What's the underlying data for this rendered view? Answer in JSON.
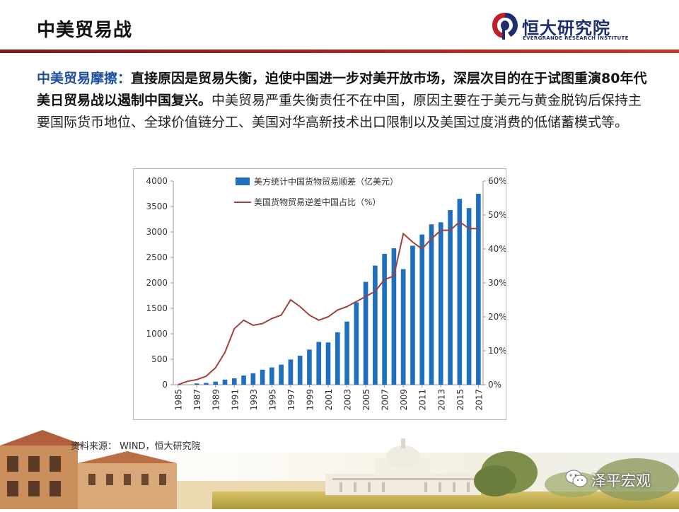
{
  "header": {
    "title": "中美贸易战",
    "logo_name": "恒大研究院",
    "logo_subtitle": "EVERGRANDE RESEARCH INSTITUTE"
  },
  "intro": {
    "keyword": "中美贸易摩擦：",
    "bold": "直接原因是贸易失衡，迫使中国进一步对美开放市场，深层次目的在于试图重演80年代美日贸易战以遏制中国复兴。",
    "normal": "中美贸易严重失衡责任不在中国，原因主要在于美元与黄金脱钩后保持主要国际货币地位、全球价值链分工、美国对华高新技术出口限制以及美国过度消费的低储蓄模式等。"
  },
  "source": "资料来源： WIND，恒大研究院",
  "watermark": "泽平宏观",
  "colors": {
    "bar": "#1f6fbf",
    "line": "#a0413c",
    "header_rule": "#a82a22",
    "keyword": "#1d4fa0"
  },
  "chart_data": {
    "type": "bar",
    "x": [
      1985,
      1986,
      1987,
      1988,
      1989,
      1990,
      1991,
      1992,
      1993,
      1994,
      1995,
      1996,
      1997,
      1998,
      1999,
      2000,
      2001,
      2002,
      2003,
      2004,
      2005,
      2006,
      2007,
      2008,
      2009,
      2010,
      2011,
      2012,
      2013,
      2014,
      2015,
      2016,
      2017
    ],
    "x_tick_labels": [
      "1985",
      "1987",
      "1989",
      "1991",
      "1993",
      "1995",
      "1997",
      "1999",
      "2001",
      "2003",
      "2005",
      "2007",
      "2009",
      "2011",
      "2013",
      "2015",
      "2017"
    ],
    "series": [
      {
        "name": "美方统计中国货物贸易顺差（亿美元）",
        "type": "bar",
        "axis": "left",
        "values": [
          0,
          0,
          25,
          35,
          60,
          100,
          125,
          180,
          225,
          295,
          340,
          395,
          495,
          570,
          690,
          840,
          830,
          1030,
          1240,
          1620,
          2020,
          2340,
          2570,
          2680,
          2270,
          2730,
          2950,
          3150,
          3190,
          3430,
          3650,
          3470,
          3750
        ]
      },
      {
        "name": "美国货物贸易逆差中国占比（%）",
        "type": "line",
        "axis": "right",
        "values": [
          0,
          1,
          1.5,
          2.5,
          5,
          9.5,
          16.5,
          19,
          17.5,
          18,
          19.5,
          20.5,
          25,
          23,
          20.5,
          19,
          20,
          22,
          23,
          24.5,
          26,
          27.5,
          31,
          32,
          44.5,
          42,
          40,
          43,
          45.5,
          45.5,
          48,
          46,
          46
        ]
      }
    ],
    "y_left": {
      "ticks": [
        "0",
        "500",
        "1000",
        "1500",
        "2000",
        "2500",
        "3000",
        "3500",
        "4000"
      ],
      "range": [
        0,
        4000
      ]
    },
    "y_right": {
      "ticks": [
        "0%",
        "10%",
        "20%",
        "30%",
        "40%",
        "50%",
        "60%"
      ],
      "range": [
        0,
        60
      ]
    },
    "legend_position": "top",
    "grid": false
  }
}
